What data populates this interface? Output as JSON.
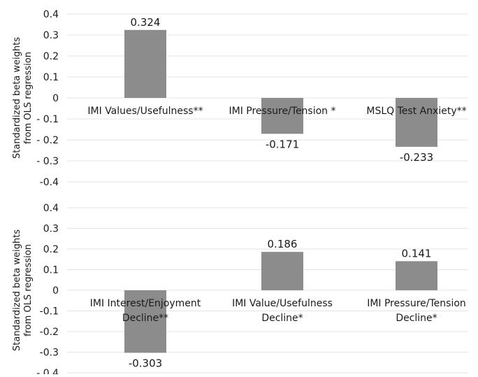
{
  "chart_data": [
    {
      "type": "bar",
      "ylabel_lines": [
        "Standardized beta weights",
        "from OLS regression"
      ],
      "ylim": [
        -0.4,
        0.4
      ],
      "yticks": [
        0.4,
        0.3,
        0.2,
        0.1,
        0,
        -0.1,
        -0.2,
        -0.3,
        -0.4
      ],
      "ytick_labels": [
        "0.4",
        "0.3",
        "0.2",
        "0.1",
        "0",
        "- 0.1",
        "- 0.2",
        "- 0.3",
        "-0.4"
      ],
      "grid": true,
      "bar_color": "#8c8c8c",
      "categories": [
        [
          "IMI Values/Usefulness**"
        ],
        [
          "IMI Pressure/Tension *"
        ],
        [
          "MSLQ Test Anxiety**"
        ]
      ],
      "values": [
        0.324,
        -0.171,
        -0.233
      ],
      "value_labels": [
        "0.324",
        "-0.171",
        "-0.233"
      ]
    },
    {
      "type": "bar",
      "ylabel_lines": [
        "Standardized beta weights",
        "from OLS regression"
      ],
      "ylim": [
        -0.4,
        0.4
      ],
      "yticks": [
        0.4,
        0.3,
        0.2,
        0.1,
        0,
        -0.1,
        -0.2,
        -0.3,
        -0.4
      ],
      "ytick_labels": [
        "0.4",
        "0.3",
        "0.2",
        "0.1",
        "0",
        "-0.1",
        "-0.2",
        "-0.3",
        "- 0.4"
      ],
      "grid": true,
      "bar_color": "#8c8c8c",
      "categories": [
        [
          "IMI Interest/Enjoyment",
          "Decline**"
        ],
        [
          "IMI Value/Usefulness",
          "Decline*"
        ],
        [
          "IMI Pressure/Tension",
          "Decline*"
        ]
      ],
      "values": [
        -0.303,
        0.186,
        0.141
      ],
      "value_labels": [
        "-0.303",
        "0.186",
        "0.141"
      ]
    }
  ]
}
